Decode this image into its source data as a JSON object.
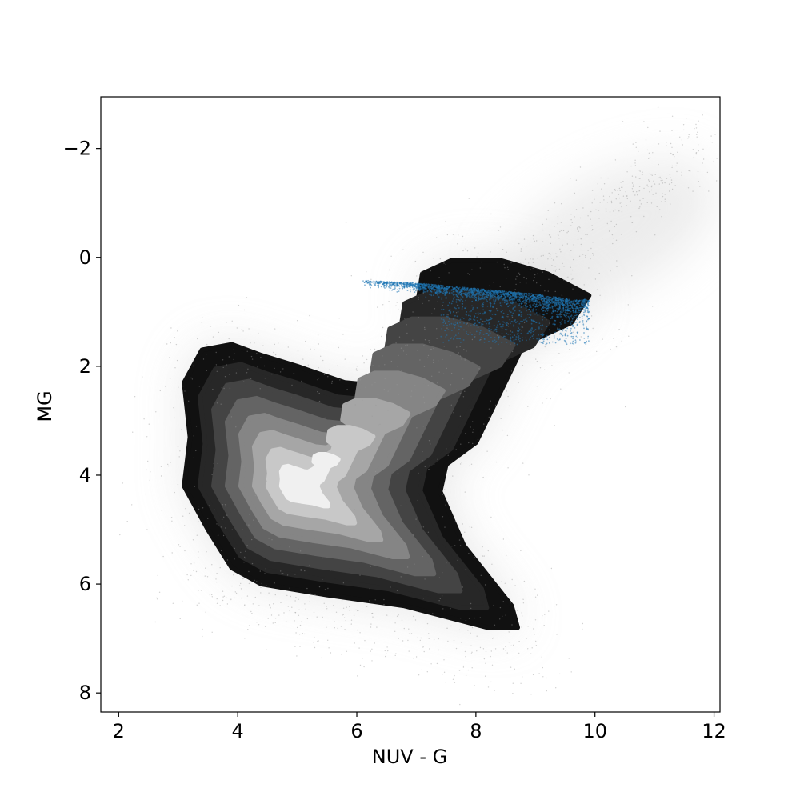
{
  "chart_data": {
    "type": "scatter",
    "title": "",
    "xlabel": "NUV - G",
    "ylabel": "MG",
    "xlim": [
      1.7,
      12.1
    ],
    "ylim": [
      8.35,
      -2.95
    ],
    "y_inverted": true,
    "grid": false,
    "legend": "none",
    "xticks": [
      2,
      4,
      6,
      8,
      10,
      12
    ],
    "xtick_labels": [
      "2",
      "4",
      "6",
      "8",
      "10",
      "12"
    ],
    "yticks": [
      -2,
      0,
      2,
      4,
      6,
      8
    ],
    "ytick_labels": [
      "−2",
      "0",
      "2",
      "4",
      "6",
      "8"
    ],
    "colors": {
      "background_points": "#9a9a9a",
      "highlight_points": "#1f77b4",
      "contour_levels": [
        "#111111",
        "#272727",
        "#444444",
        "#646464",
        "#858585",
        "#a6a6a6",
        "#c8c8c8",
        "#f0f0f0"
      ]
    },
    "series": [
      {
        "kind": "density-contours",
        "levels": 8,
        "outer_boundary": [
          [
            3.1,
            2.3
          ],
          [
            3.4,
            1.7
          ],
          [
            3.9,
            1.6
          ],
          [
            4.4,
            1.8
          ],
          [
            5.0,
            2.0
          ],
          [
            5.8,
            2.3
          ],
          [
            6.3,
            2.35
          ],
          [
            6.9,
            2.0
          ],
          [
            7.3,
            1.7
          ],
          [
            7.4,
            1.3
          ],
          [
            7.0,
            1.0
          ],
          [
            7.1,
            0.3
          ],
          [
            7.6,
            0.05
          ],
          [
            8.4,
            0.05
          ],
          [
            9.2,
            0.3
          ],
          [
            9.9,
            0.7
          ],
          [
            9.6,
            1.2
          ],
          [
            8.8,
            1.6
          ],
          [
            8.4,
            2.5
          ],
          [
            8.0,
            3.4
          ],
          [
            7.5,
            3.8
          ],
          [
            7.4,
            4.3
          ],
          [
            7.8,
            5.3
          ],
          [
            8.6,
            6.4
          ],
          [
            8.7,
            6.8
          ],
          [
            8.2,
            6.8
          ],
          [
            6.8,
            6.4
          ],
          [
            5.5,
            6.2
          ],
          [
            4.4,
            6.0
          ],
          [
            3.9,
            5.7
          ],
          [
            3.5,
            5.0
          ],
          [
            3.1,
            4.2
          ],
          [
            3.2,
            3.3
          ]
        ],
        "peak": {
          "x": 5.0,
          "y": 4.2
        }
      },
      {
        "kind": "scatter-cloud",
        "color": "#1f77b4",
        "x_range": [
          6.1,
          9.9
        ],
        "y_range": [
          0.35,
          1.6
        ],
        "ridge": [
          [
            6.1,
            0.45
          ],
          [
            7.0,
            0.5
          ],
          [
            8.0,
            0.6
          ],
          [
            9.0,
            0.7
          ],
          [
            9.6,
            0.8
          ]
        ]
      }
    ]
  }
}
